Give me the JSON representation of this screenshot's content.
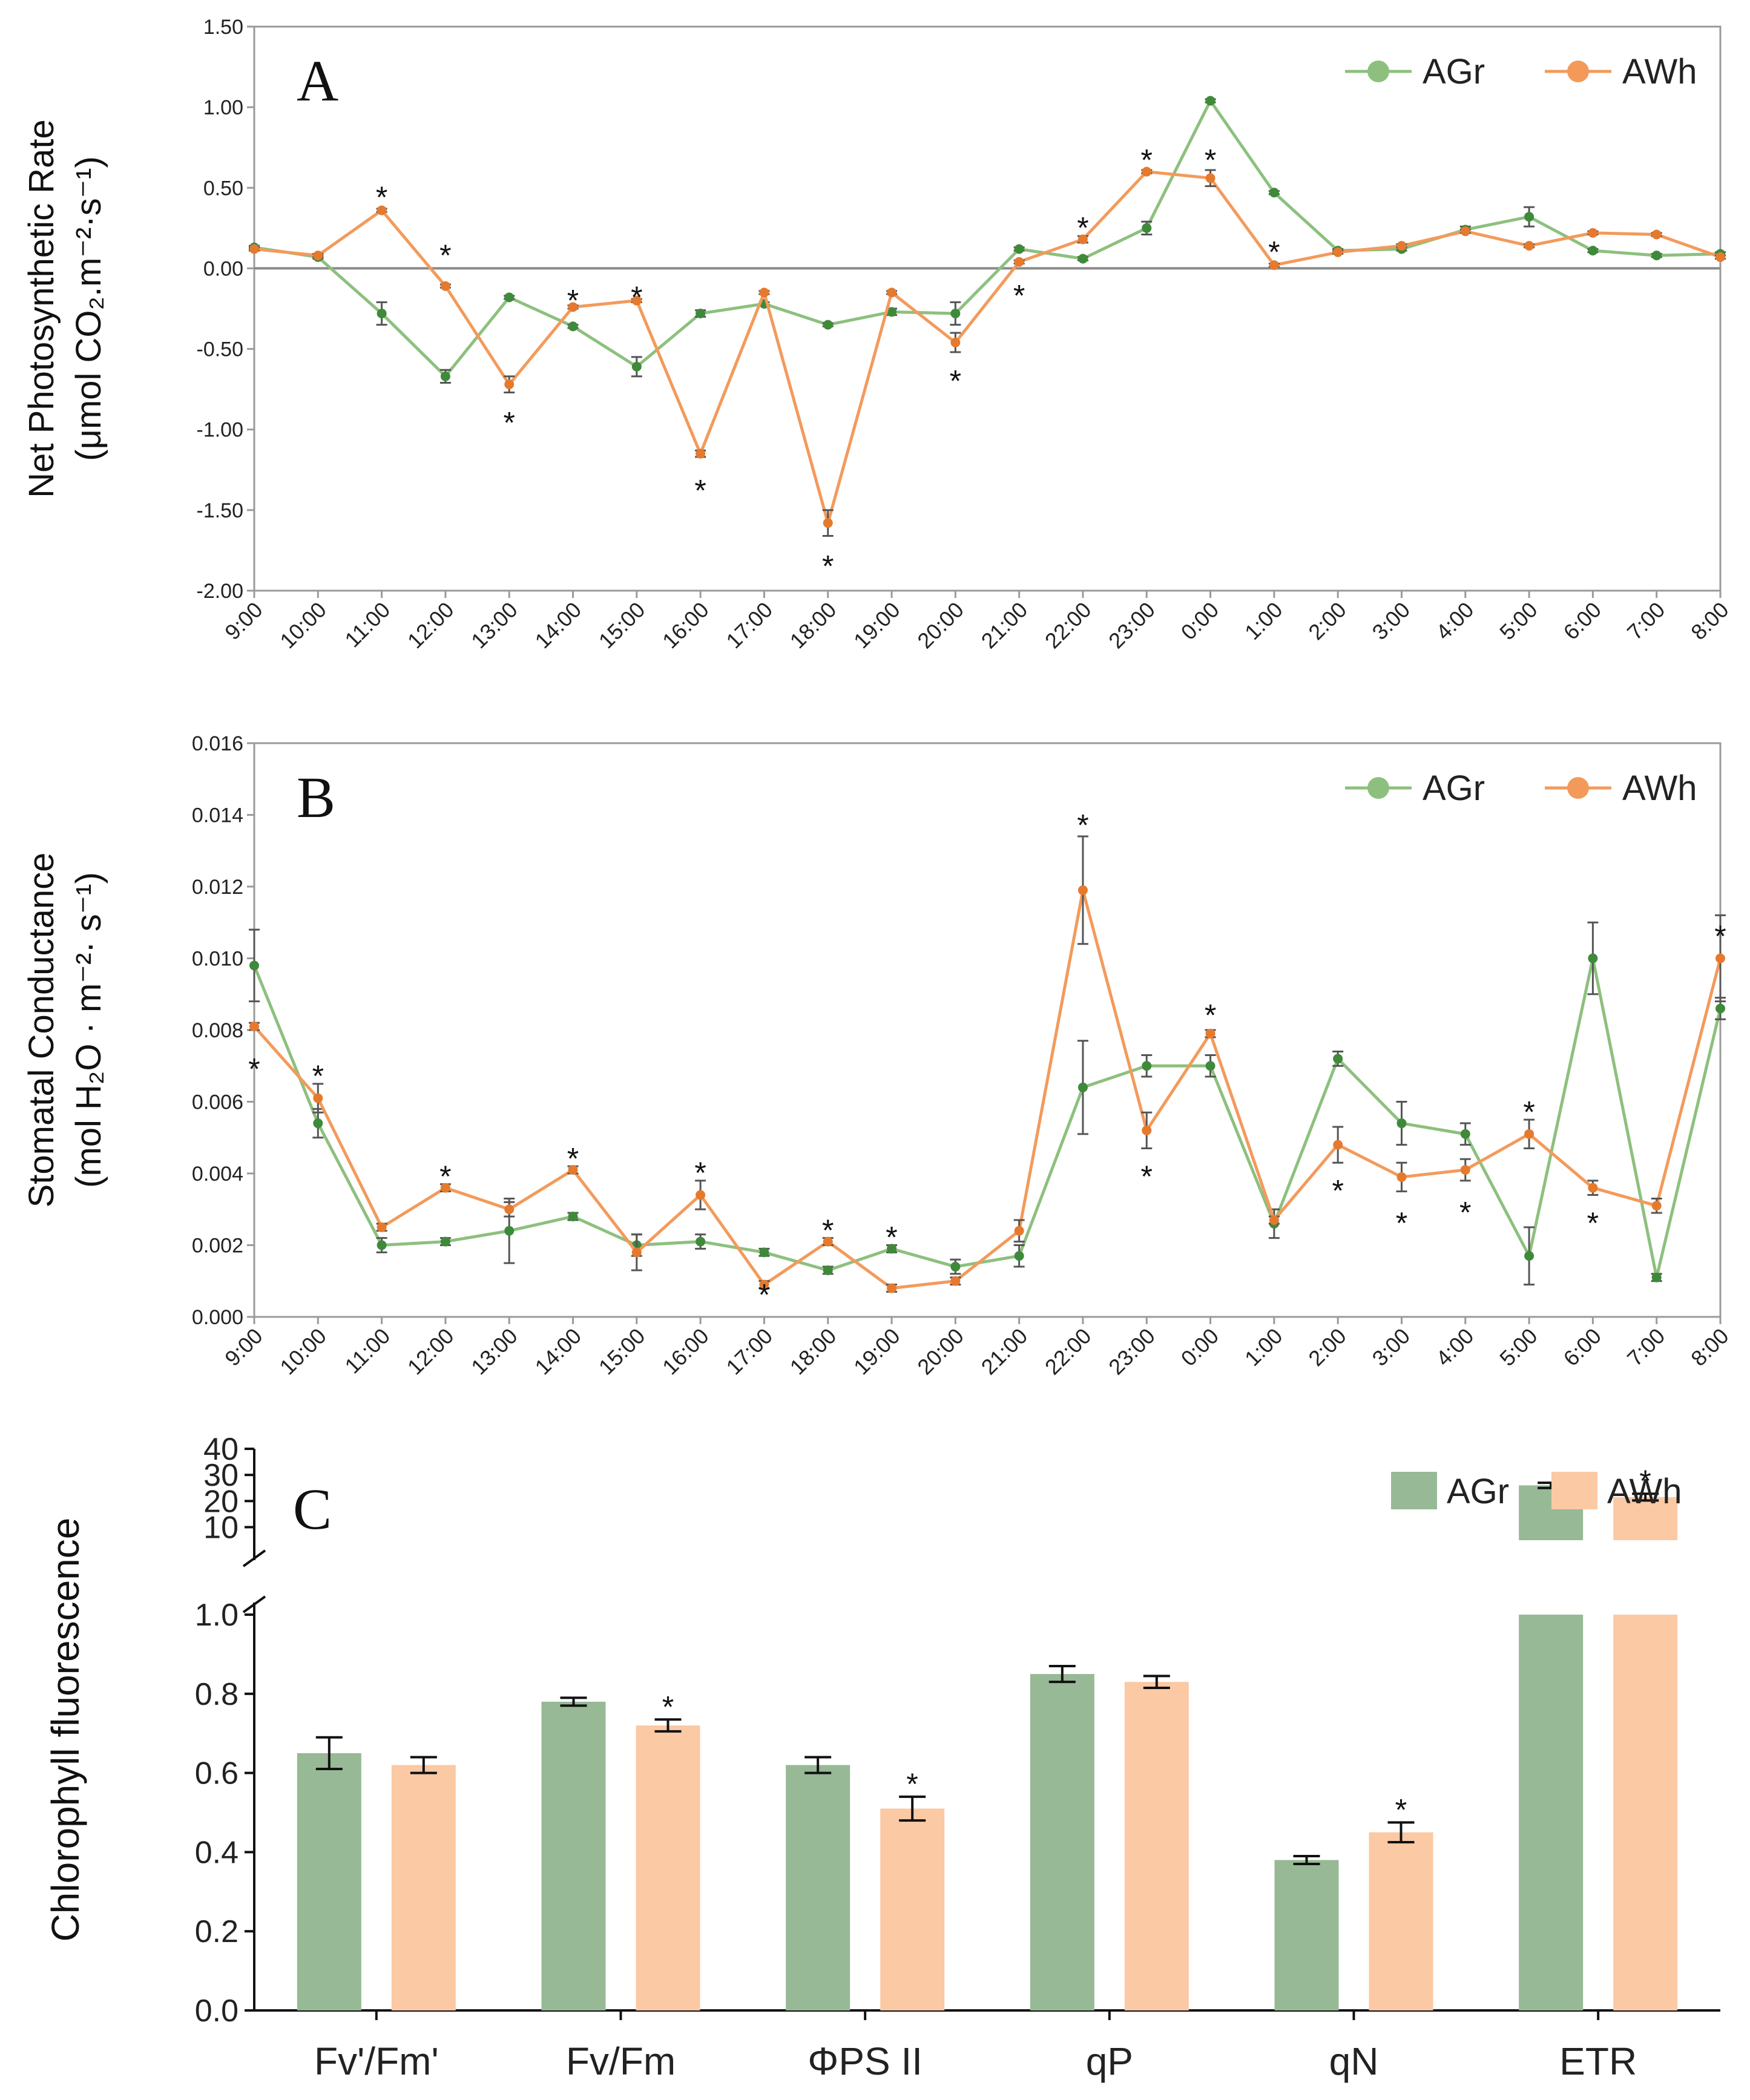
{
  "chart_data": [
    {
      "panel": "A",
      "type": "line",
      "panel_label": "A",
      "ylabel_line1": "Net Photosynthetic Rate",
      "ylabel_line2": "(μmol CO₂.m⁻²·s⁻¹)",
      "ylim": [
        -2.0,
        1.5
      ],
      "y_ticks": [
        1.5,
        1.0,
        0.5,
        0.0,
        -0.5,
        -1.0,
        -1.5,
        -2.0
      ],
      "y_tick_labels": [
        "1.50",
        "1.00",
        "0.50",
        "0.00",
        "-0.50",
        "-1.00",
        "-1.50",
        "-2.00"
      ],
      "categories": [
        "9:00",
        "10:00",
        "11:00",
        "12:00",
        "13:00",
        "14:00",
        "15:00",
        "16:00",
        "17:00",
        "18:00",
        "19:00",
        "20:00",
        "21:00",
        "22:00",
        "23:00",
        "0:00",
        "1:00",
        "2:00",
        "3:00",
        "4:00",
        "5:00",
        "6:00",
        "7:00",
        "8:00"
      ],
      "legend_position": "top-right",
      "series": [
        {
          "name": "AGr",
          "color": "#8dc07e",
          "marker": "#3f8a3a",
          "values": [
            0.13,
            0.07,
            -0.28,
            -0.67,
            -0.18,
            -0.36,
            -0.61,
            -0.28,
            -0.22,
            -0.35,
            -0.27,
            -0.28,
            0.12,
            0.06,
            0.25,
            1.04,
            0.47,
            0.11,
            0.12,
            0.24,
            0.32,
            0.11,
            0.08,
            0.09
          ],
          "errors": [
            0.01,
            0.01,
            0.07,
            0.04,
            0.01,
            0.01,
            0.06,
            0.02,
            0.01,
            0.01,
            0.02,
            0.07,
            0.01,
            0.01,
            0.04,
            0.01,
            0.01,
            0.01,
            0.01,
            0.02,
            0.06,
            0.01,
            0.01,
            0.01
          ]
        },
        {
          "name": "AWh",
          "color": "#f39a5b",
          "marker": "#e57a2e",
          "values": [
            0.12,
            0.08,
            0.36,
            -0.11,
            -0.72,
            -0.24,
            -0.2,
            -1.15,
            -0.15,
            -1.58,
            -0.15,
            -0.46,
            0.04,
            0.18,
            0.6,
            0.56,
            0.02,
            0.1,
            0.14,
            0.23,
            0.14,
            0.22,
            0.21,
            0.07
          ],
          "errors": [
            0.01,
            0.01,
            0.01,
            0.01,
            0.05,
            0.01,
            0.01,
            0.02,
            0.01,
            0.08,
            0.01,
            0.06,
            0.01,
            0.02,
            0.01,
            0.05,
            0.01,
            0.01,
            0.01,
            0.01,
            0.01,
            0.01,
            0.01,
            0.01
          ]
        }
      ],
      "annotations": [
        {
          "text": "*",
          "index": 2,
          "y": 0.46
        },
        {
          "text": "*",
          "index": 3,
          "y": 0.1
        },
        {
          "text": "*",
          "index": 4,
          "y": -0.94
        },
        {
          "text": "*",
          "index": 5,
          "y": -0.18
        },
        {
          "text": "*",
          "index": 6,
          "y": -0.16
        },
        {
          "text": "*",
          "index": 7,
          "y": -1.36
        },
        {
          "text": "*",
          "index": 9,
          "y": -1.83
        },
        {
          "text": "*",
          "index": 11,
          "y": -0.68
        },
        {
          "text": "*",
          "index": 12,
          "y": -0.15
        },
        {
          "text": "*",
          "index": 13,
          "y": 0.27
        },
        {
          "text": "*",
          "index": 14,
          "y": 0.69
        },
        {
          "text": "*",
          "index": 15,
          "y": 0.69
        },
        {
          "text": "*",
          "index": 16,
          "y": 0.12
        }
      ]
    },
    {
      "panel": "B",
      "type": "line",
      "panel_label": "B",
      "ylabel_line1": "Stomatal Conductance",
      "ylabel_line2": "(mol H₂O · m⁻²· s⁻¹)",
      "ylim": [
        0,
        0.016
      ],
      "y_ticks": [
        0.016,
        0.014,
        0.012,
        0.01,
        0.008,
        0.006,
        0.004,
        0.002,
        0.0
      ],
      "y_tick_labels": [
        "0.016",
        "0.014",
        "0.012",
        "0.010",
        "0.008",
        "0.006",
        "0.004",
        "0.002",
        "0.000"
      ],
      "categories": [
        "9:00",
        "10:00",
        "11:00",
        "12:00",
        "13:00",
        "14:00",
        "15:00",
        "16:00",
        "17:00",
        "18:00",
        "19:00",
        "20:00",
        "21:00",
        "22:00",
        "23:00",
        "0:00",
        "1:00",
        "2:00",
        "3:00",
        "4:00",
        "5:00",
        "6:00",
        "7:00",
        "8:00"
      ],
      "legend_position": "top-right",
      "series": [
        {
          "name": "AGr",
          "color": "#8dc07e",
          "marker": "#3f8a3a",
          "values": [
            0.0098,
            0.0054,
            0.002,
            0.0021,
            0.0024,
            0.0028,
            0.002,
            0.0021,
            0.0018,
            0.0013,
            0.0019,
            0.0014,
            0.0017,
            0.0064,
            0.007,
            0.007,
            0.0026,
            0.0072,
            0.0054,
            0.0051,
            0.0017,
            0.01,
            0.0011,
            0.0086
          ],
          "errors": [
            0.001,
            0.0004,
            0.0002,
            0.0001,
            0.0009,
            0.0001,
            0.0003,
            0.0002,
            0.0001,
            0.0001,
            0.0001,
            0.0002,
            0.0003,
            0.0013,
            0.0003,
            0.0003,
            0.0004,
            0.0002,
            0.0006,
            0.0003,
            0.0008,
            0.001,
            0.0001,
            0.0003
          ]
        },
        {
          "name": "AWh",
          "color": "#f39a5b",
          "marker": "#e57a2e",
          "values": [
            0.0081,
            0.0061,
            0.0025,
            0.0036,
            0.003,
            0.0041,
            0.0018,
            0.0034,
            0.0009,
            0.0021,
            0.0008,
            0.001,
            0.0024,
            0.0119,
            0.0052,
            0.0079,
            0.0027,
            0.0048,
            0.0039,
            0.0041,
            0.0051,
            0.0036,
            0.0031,
            0.01
          ],
          "errors": [
            0.0001,
            0.0004,
            0.0001,
            0.0001,
            0.0002,
            0.0001,
            0.0005,
            0.0004,
            0.0001,
            0.0001,
            0.0001,
            0.0001,
            0.0003,
            0.0015,
            0.0005,
            0.0001,
            0.0001,
            0.0005,
            0.0004,
            0.0003,
            0.0004,
            0.0002,
            0.0002,
            0.0012
          ]
        }
      ],
      "annotations": [
        {
          "text": "*",
          "index": 0,
          "y": 0.007
        },
        {
          "text": "*",
          "index": 1,
          "y": 0.0068
        },
        {
          "text": "*",
          "index": 3,
          "y": 0.004
        },
        {
          "text": "*",
          "index": 5,
          "y": 0.0045
        },
        {
          "text": "*",
          "index": 7,
          "y": 0.0041
        },
        {
          "text": "*",
          "index": 8,
          "y": 0.0007
        },
        {
          "text": "*",
          "index": 9,
          "y": 0.0025
        },
        {
          "text": "*",
          "index": 10,
          "y": 0.0023
        },
        {
          "text": "*",
          "index": 13,
          "y": 0.0138
        },
        {
          "text": "*",
          "index": 14,
          "y": 0.004
        },
        {
          "text": "*",
          "index": 15,
          "y": 0.0085
        },
        {
          "text": "*",
          "index": 17,
          "y": 0.0036
        },
        {
          "text": "*",
          "index": 18,
          "y": 0.0027
        },
        {
          "text": "*",
          "index": 19,
          "y": 0.003
        },
        {
          "text": "*",
          "index": 20,
          "y": 0.0058
        },
        {
          "text": "*",
          "index": 21,
          "y": 0.0027
        },
        {
          "text": "*",
          "index": 23,
          "y": 0.0107
        }
      ]
    },
    {
      "panel": "C",
      "type": "bar",
      "panel_label": "C",
      "ylabel": "Chlorophyll fluorescence",
      "categories": [
        "Fv'/Fm'",
        "Fv/Fm",
        "ΦPS II",
        "qP",
        "qN",
        "ETR"
      ],
      "y_break": true,
      "ylim_lower": [
        0,
        1.0
      ],
      "ylim_upper": [
        5,
        40
      ],
      "y_ticks_lower": [
        "0.0",
        "0.2",
        "0.4",
        "0.6",
        "0.8",
        "1.0"
      ],
      "y_ticks_upper": [
        "10",
        "20",
        "30",
        "40"
      ],
      "legend_position": "top-right",
      "series": [
        {
          "name": "AGr",
          "color": "#97b996",
          "values": [
            0.65,
            0.78,
            0.62,
            0.85,
            0.38,
            26.0
          ],
          "errors": [
            0.04,
            0.01,
            0.02,
            0.02,
            0.01,
            1.0
          ]
        },
        {
          "name": "AWh",
          "color": "#fbc9a4",
          "values": [
            0.62,
            0.72,
            0.51,
            0.83,
            0.45,
            21.5
          ],
          "errors": [
            0.02,
            0.015,
            0.03,
            0.015,
            0.025,
            1.3
          ]
        }
      ],
      "significance": [
        "",
        "*",
        "*",
        "",
        "*",
        "*"
      ]
    }
  ]
}
